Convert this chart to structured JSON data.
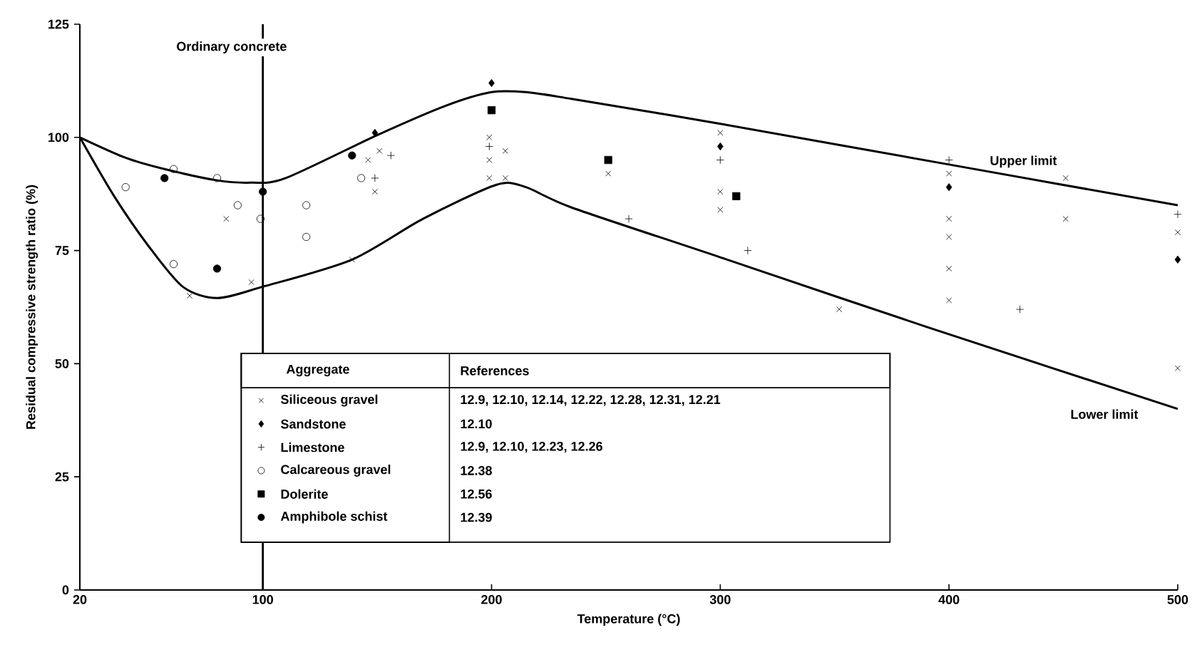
{
  "chart_data": {
    "type": "scatter",
    "xlabel": "Temperature (°C)",
    "ylabel": "Residual compressive strength ratio (%)",
    "legend_title": "Aggregate",
    "xlim": [
      20,
      500
    ],
    "xticks": [
      20,
      100,
      200,
      300,
      400,
      500
    ],
    "ylim": [
      0,
      125
    ],
    "yticks": [
      0,
      25,
      50,
      75,
      100,
      125
    ],
    "grid": false,
    "legend": "bottom",
    "annotations": [
      "Ordinary concrete",
      "References",
      "12.9,  12.10,  12.14,  12.22,  12.28,  12.31,  12.21",
      "12.10",
      "12.9,  12.10,  12.23,  12.26",
      "12.38",
      "12.56",
      "12.39"
    ],
    "ref_lines": [
      {
        "axis": "x",
        "value": 100,
        "color": "#000000"
      }
    ],
    "series": [
      {
        "name": "Siliceous gravel",
        "color": "#000000",
        "marker": "cross",
        "x": [
          84,
          68,
          95,
          139,
          146,
          151,
          149,
          199,
          199,
          206,
          199,
          206,
          251,
          300,
          300,
          300,
          352,
          400,
          400,
          400,
          400,
          400,
          451,
          451,
          500,
          500
        ],
        "values": [
          82,
          65,
          68,
          73,
          95,
          97,
          88,
          100,
          95,
          97,
          91,
          91,
          92,
          101,
          88,
          84,
          62,
          92,
          82,
          78,
          71,
          64,
          91,
          82,
          79,
          49
        ]
      },
      {
        "name": "Sandstone",
        "color": "#000000",
        "marker": "diamond",
        "x": [
          149,
          200,
          300,
          400,
          500
        ],
        "values": [
          101,
          112,
          98,
          89,
          73
        ]
      },
      {
        "name": "Limestone",
        "color": "#000000",
        "marker": "plus",
        "x": [
          156,
          149,
          199,
          300,
          260,
          312,
          400,
          431,
          500
        ],
        "values": [
          96,
          91,
          98,
          95,
          82,
          75,
          95,
          62,
          83
        ]
      },
      {
        "name": "Calcareous gravel",
        "color": "#000000",
        "marker": "circle",
        "x": [
          40,
          61,
          61,
          80,
          89,
          99,
          119,
          119,
          143
        ],
        "values": [
          89,
          72,
          93,
          91,
          85,
          82,
          85,
          78,
          91
        ]
      },
      {
        "name": "Dolerite",
        "color": "#000000",
        "marker": "square",
        "x": [
          200,
          251,
          307
        ],
        "values": [
          106,
          95,
          87
        ]
      },
      {
        "name": "Amphibole schist",
        "color": "#000000",
        "marker": "dot",
        "x": [
          57,
          80,
          100,
          139
        ],
        "values": [
          91,
          71,
          88,
          96
        ]
      },
      {
        "name": "Upper limit",
        "type": "line",
        "color": "#000000",
        "marker": "none",
        "x": [
          20,
          40,
          57,
          80,
          95,
          110,
          150,
          180,
          200,
          215,
          235,
          300,
          400,
          500
        ],
        "values": [
          100,
          95.5,
          93,
          90.5,
          90,
          91,
          100.5,
          107,
          110,
          110,
          108.5,
          103,
          94,
          85
        ]
      },
      {
        "name": "Lower limit",
        "type": "line",
        "color": "#000000",
        "marker": "none",
        "x": [
          20,
          35,
          50,
          65,
          80,
          100,
          139,
          170,
          202,
          215,
          235,
          300,
          391,
          500
        ],
        "values": [
          100,
          87,
          76,
          67,
          64.5,
          67,
          73,
          82,
          89.5,
          89,
          84.5,
          73.5,
          58,
          40
        ]
      }
    ]
  }
}
